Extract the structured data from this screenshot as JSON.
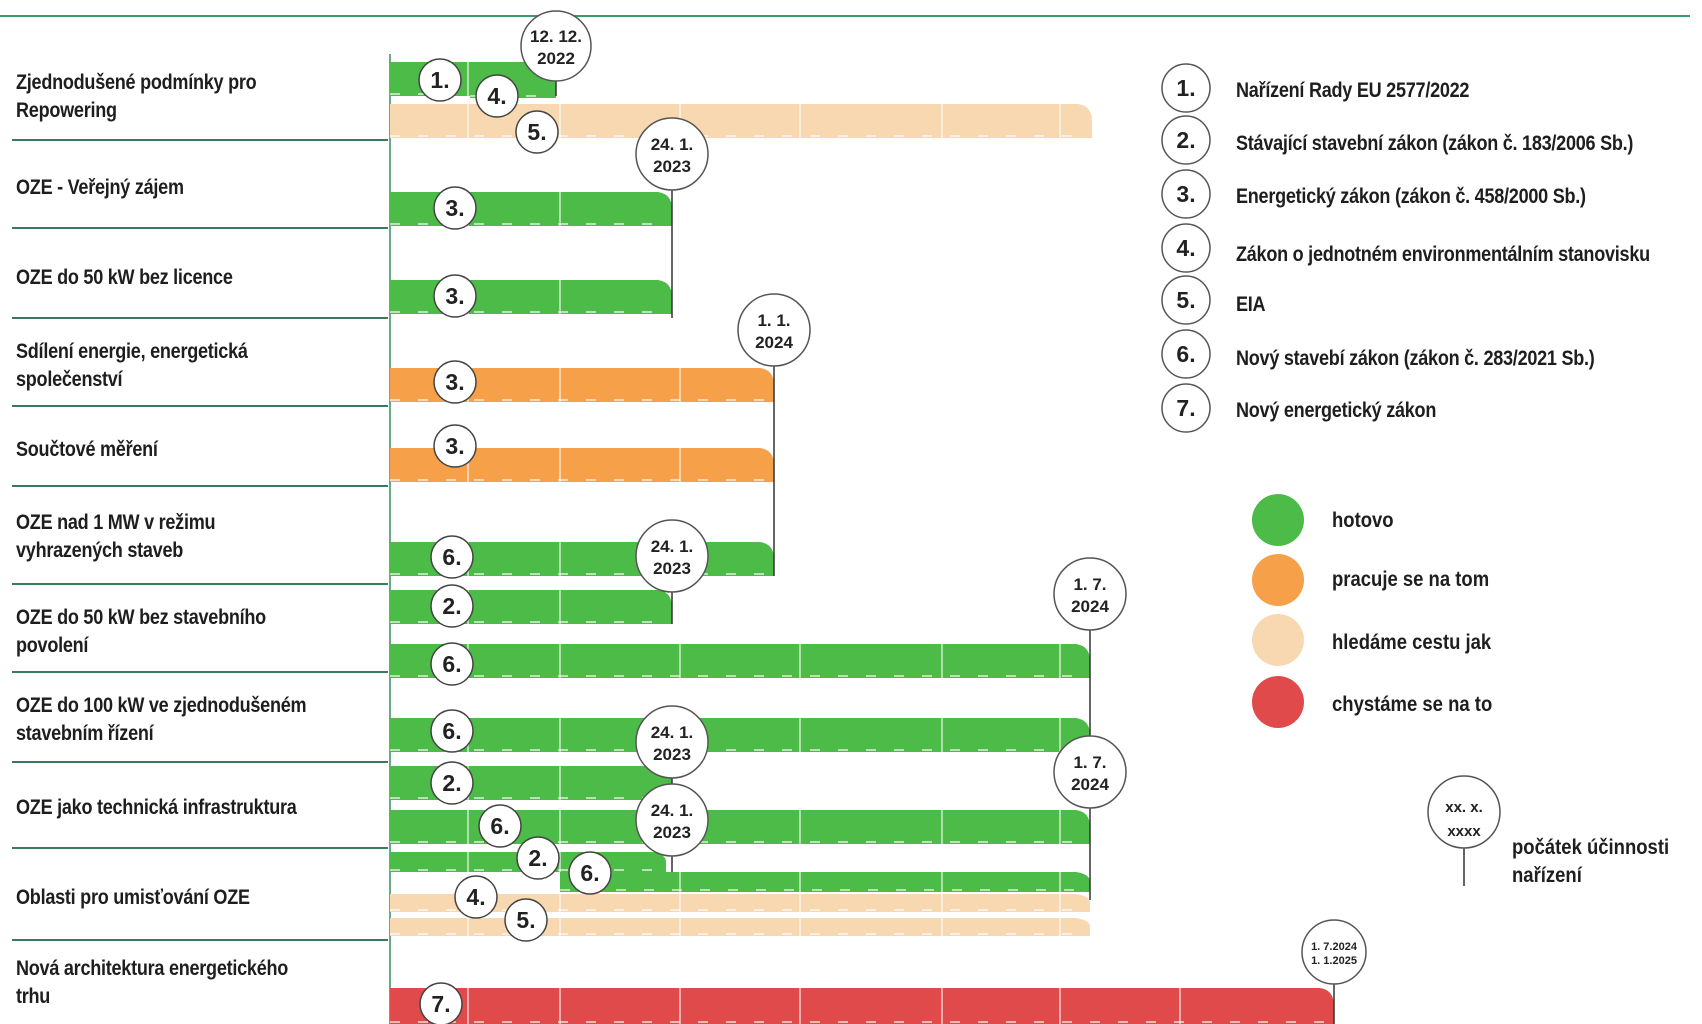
{
  "rows": [
    {
      "label": "Zjednodušené podmínky pro Repowering"
    },
    {
      "label": "OZE - Veřejný zájem"
    },
    {
      "label": "OZE do 50 kW bez licence"
    },
    {
      "label": "Sdílení energie, energetická společenství"
    },
    {
      "label": "Součtové měření"
    },
    {
      "label": "OZE nad 1 MW v režimu vyhrazených staveb"
    },
    {
      "label": "OZE do 50 kW bez stavebního povolení"
    },
    {
      "label": "OZE do 100 kW ve zjednodušeném stavebním řízení"
    },
    {
      "label": "OZE jako technická infrastruktura"
    },
    {
      "label": "Oblasti pro umisťování OZE"
    },
    {
      "label": "Nová architektura energetického trhu"
    }
  ],
  "laws": [
    {
      "num": "1.",
      "name": "Nařízení Rady EU 2577/2022"
    },
    {
      "num": "2.",
      "name": "Stávající stavební zákon (zákon č. 183/2006 Sb.)"
    },
    {
      "num": "3.",
      "name": "Energetický zákon (zákon č. 458/2000 Sb.)"
    },
    {
      "num": "4.",
      "name": "Zákon o jednotném environmentálním stanovisku"
    },
    {
      "num": "5.",
      "name": "EIA"
    },
    {
      "num": "6.",
      "name": "Nový stavebí zákon (zákon č. 283/2021 Sb.)"
    },
    {
      "num": "7.",
      "name": "Nový energetický zákon"
    }
  ],
  "statuses": [
    {
      "key": "done",
      "label": "hotovo",
      "color": "#4cbb47"
    },
    {
      "key": "progress",
      "label": "pracuje se na tom",
      "color": "#f7a04a"
    },
    {
      "key": "searching",
      "label": "hledáme cestu jak",
      "color": "#f7d8b0"
    },
    {
      "key": "planned",
      "label": "chystáme se na to",
      "color": "#e04a4a"
    }
  ],
  "start_legend": {
    "date_line1": "xx. x.",
    "date_line2": "xxxx",
    "label": "počátek účinnosti nařízení"
  },
  "bars": [
    {
      "row": 0,
      "status": "done",
      "law": "1.",
      "end": "12. 12. 2022"
    },
    {
      "row": 0,
      "status": "done",
      "law": "4.",
      "end": "12. 12. 2022"
    },
    {
      "row": 0,
      "status": "searching",
      "law": "5.",
      "end": "1. 7. 2024"
    },
    {
      "row": 1,
      "status": "done",
      "law": "3.",
      "end": "24. 1. 2023"
    },
    {
      "row": 2,
      "status": "done",
      "law": "3.",
      "end": "24. 1. 2023"
    },
    {
      "row": 3,
      "status": "progress",
      "law": "3.",
      "end": "1. 1. 2024"
    },
    {
      "row": 4,
      "status": "progress",
      "law": "3.",
      "end": "1. 1. 2024"
    },
    {
      "row": 5,
      "status": "done",
      "law": "6.",
      "end": "1. 1. 2024"
    },
    {
      "row": 6,
      "status": "done",
      "law": "2.",
      "end": "24. 1. 2023"
    },
    {
      "row": 6,
      "status": "done",
      "law": "6.",
      "end": "1. 7. 2024"
    },
    {
      "row": 7,
      "status": "done",
      "law": "6.",
      "end": "1. 7. 2024"
    },
    {
      "row": 8,
      "status": "done",
      "law": "2.",
      "end": "24. 1. 2023"
    },
    {
      "row": 8,
      "status": "done",
      "law": "6.",
      "end": "1. 7. 2024"
    },
    {
      "row": 9,
      "status": "done",
      "law": "2.",
      "end": "24. 1. 2023"
    },
    {
      "row": 9,
      "status": "done",
      "law": "6.",
      "end": "1. 7. 2024"
    },
    {
      "row": 9,
      "status": "searching",
      "law": "4.",
      "end": "1. 7. 2024"
    },
    {
      "row": 9,
      "status": "searching",
      "law": "5.",
      "end": "1. 7. 2024"
    },
    {
      "row": 10,
      "status": "planned",
      "law": "7.",
      "end": "1. 7.2024 1. 1.2025"
    }
  ],
  "milestones": [
    {
      "date_line1": "12. 12.",
      "date_line2": "2022"
    },
    {
      "date_line1": "24. 1.",
      "date_line2": "2023"
    },
    {
      "date_line1": "1. 1.",
      "date_line2": "2024"
    },
    {
      "date_line1": "24. 1.",
      "date_line2": "2023"
    },
    {
      "date_line1": "1. 7.",
      "date_line2": "2024"
    },
    {
      "date_line1": "24. 1.",
      "date_line2": "2023"
    },
    {
      "date_line1": "1. 7.",
      "date_line2": "2024"
    },
    {
      "date_line1": "24. 1.",
      "date_line2": "2023"
    },
    {
      "date_line1": "1. 7.2024",
      "date_line2": "1. 1.2025"
    }
  ],
  "colors": {
    "axis": "#2e8b57",
    "rule": "#3a7a5a",
    "badge_stroke": "#333333"
  }
}
